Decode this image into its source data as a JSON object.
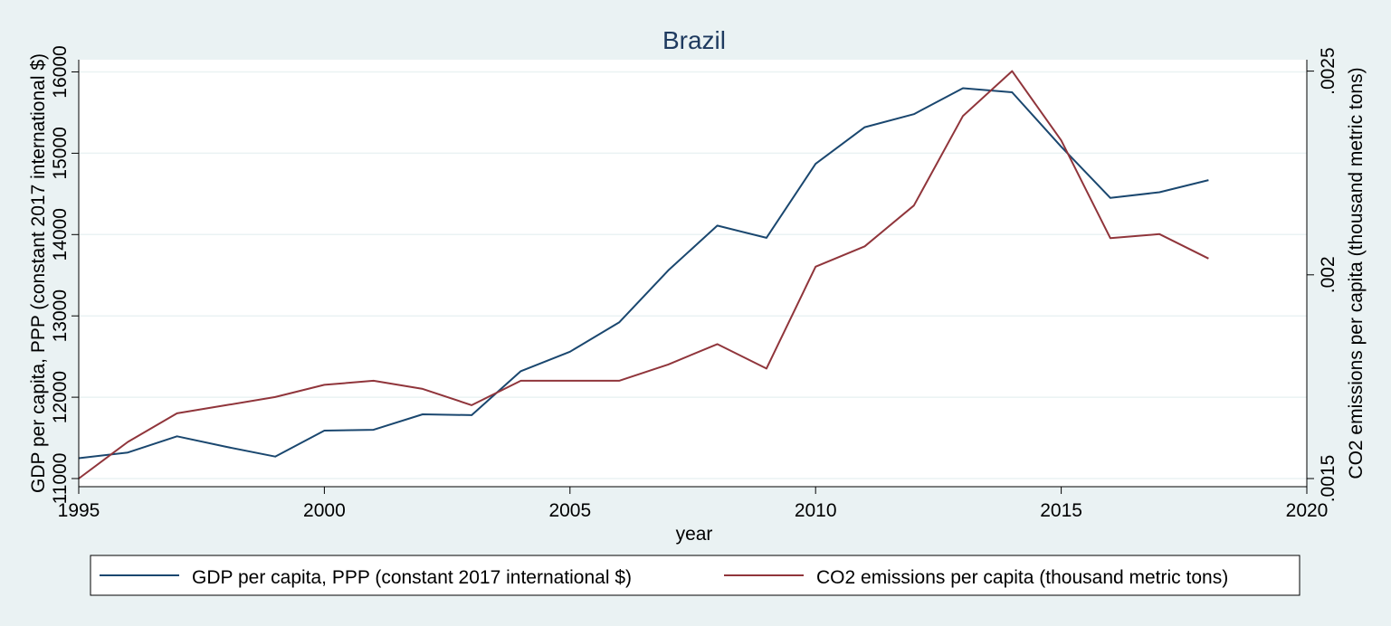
{
  "chart_data": {
    "type": "line",
    "title": "Brazil",
    "xlabel": "year",
    "ylabel_left": "GDP per capita, PPP (constant 2017 international $)",
    "ylabel_right": "CO2 emissions per capita (thousand metric tons)",
    "xlim": [
      1995,
      2020
    ],
    "ylim_left": [
      10900,
      16150
    ],
    "ylim_right": [
      0.00148,
      0.002528
    ],
    "x_ticks": [
      "1995",
      "2000",
      "2005",
      "2010",
      "2015",
      "2020"
    ],
    "y_ticks_left": [
      "11000",
      "12000",
      "13000",
      "14000",
      "15000",
      "16000"
    ],
    "y_ticks_right": [
      ".0015",
      ".002",
      ".0025"
    ],
    "grid": true,
    "legend_position": "bottom",
    "x": [
      1995,
      1996,
      1997,
      1998,
      1999,
      2000,
      2001,
      2002,
      2003,
      2004,
      2005,
      2006,
      2007,
      2008,
      2009,
      2010,
      2011,
      2012,
      2013,
      2014,
      2015,
      2016,
      2017,
      2018
    ],
    "series": [
      {
        "name": "GDP per capita, PPP (constant 2017 international $)",
        "axis": "left",
        "color": "#1a476f",
        "values": [
          11250,
          11320,
          11520,
          11390,
          11270,
          11590,
          11600,
          11790,
          11780,
          12320,
          12560,
          12920,
          13560,
          14110,
          13960,
          14870,
          15320,
          15480,
          15800,
          15750,
          15080,
          14450,
          14520,
          14670
        ]
      },
      {
        "name": "CO2 emissions per capita (thousand metric tons)",
        "axis": "right",
        "color": "#90353b",
        "values": [
          0.0015,
          0.00159,
          0.00166,
          0.00168,
          0.0017,
          0.00173,
          0.00174,
          0.00172,
          0.00168,
          0.00174,
          0.00174,
          0.00174,
          0.00178,
          0.00183,
          0.00177,
          0.00202,
          0.00207,
          0.00217,
          0.00239,
          0.0025,
          0.00233,
          0.00209,
          0.0021,
          0.00204
        ]
      }
    ]
  }
}
